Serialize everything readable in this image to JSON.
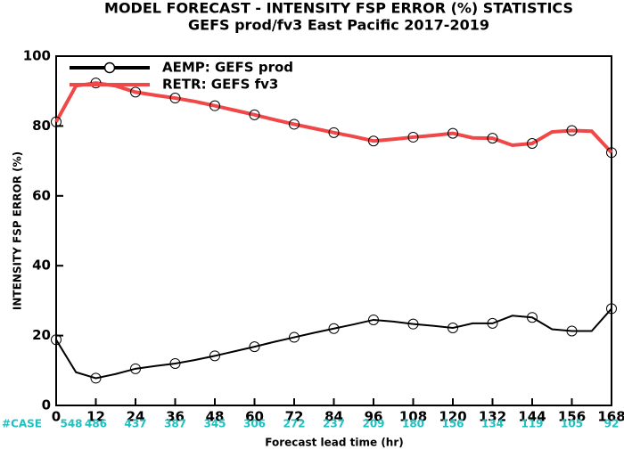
{
  "chart_data": {
    "type": "line",
    "title": "MODEL FORECAST - INTENSITY FSP ERROR (%) STATISTICS",
    "subtitle": "GEFS prod/fv3 East Pacific 2017-2019",
    "x_label": "Forecast lead time (hr)",
    "y_label": "INTENSITY FSP ERROR (%)",
    "x": [
      0,
      6,
      12,
      18,
      24,
      30,
      36,
      42,
      48,
      54,
      60,
      66,
      72,
      78,
      84,
      90,
      96,
      102,
      108,
      114,
      120,
      126,
      132,
      138,
      144,
      150,
      156,
      162,
      168
    ],
    "series": [
      {
        "name": "AEMP: GEFS prod",
        "color": "#000000",
        "values": [
          18.8,
          9.5,
          7.8,
          9,
          10.5,
          11.3,
          12,
          13,
          14.2,
          15.5,
          16.8,
          18.2,
          19.5,
          20.8,
          22,
          23.2,
          24.5,
          24,
          23.3,
          22.8,
          22.2,
          23.5,
          23.5,
          25.7,
          25.2,
          21.8,
          21.3,
          21.3,
          27.7
        ]
      },
      {
        "name": "RETR: GEFS fv3",
        "color": "#f04848",
        "values": [
          81.2,
          91.5,
          92.3,
          91.5,
          89.7,
          88.8,
          88,
          87,
          85.8,
          84.5,
          83.2,
          81.8,
          80.5,
          79.3,
          78.1,
          77,
          75.7,
          76.2,
          76.8,
          77.3,
          77.9,
          76.6,
          76.5,
          74.5,
          75,
          78.3,
          78.7,
          78.5,
          72.4
        ]
      }
    ],
    "xlim": [
      0,
      168
    ],
    "xticks": [
      0,
      12,
      24,
      36,
      48,
      60,
      72,
      84,
      96,
      108,
      120,
      132,
      144,
      156,
      168
    ],
    "ylim": [
      0,
      100
    ],
    "yticks": [
      0,
      20,
      40,
      60,
      80,
      100
    ],
    "case_label": "#CASE",
    "cases": [
      548,
      486,
      437,
      387,
      345,
      306,
      272,
      237,
      209,
      180,
      156,
      134,
      119,
      105,
      92
    ],
    "legend": "upper left"
  }
}
